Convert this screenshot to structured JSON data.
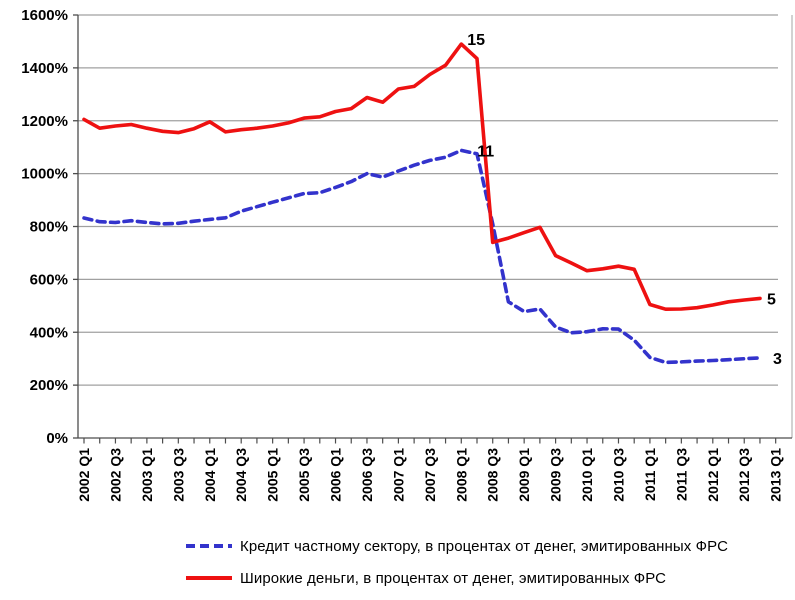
{
  "chart_data": {
    "type": "line",
    "title": "",
    "xlabel": "",
    "ylabel": "",
    "ylim": [
      0,
      1600
    ],
    "ytick_step": 200,
    "y_tick_labels": [
      "0%",
      "200%",
      "400%",
      "600%",
      "800%",
      "1000%",
      "1200%",
      "1400%",
      "1600%"
    ],
    "x_tick_labels": [
      "2002 Q1",
      "2002 Q3",
      "2003 Q1",
      "2003 Q3",
      "2004 Q1",
      "2004 Q3",
      "2005 Q1",
      "2005 Q3",
      "2006 Q1",
      "2006 Q3",
      "2007 Q1",
      "2007 Q3",
      "2008 Q1",
      "2008 Q3",
      "2009 Q1",
      "2009 Q3",
      "2010 Q1",
      "2010 Q3",
      "2011 Q1",
      "2011 Q3",
      "2012 Q1",
      "2012 Q3",
      "2013 Q1"
    ],
    "categories": [
      "2002 Q1",
      "2002 Q2",
      "2002 Q3",
      "2002 Q4",
      "2003 Q1",
      "2003 Q2",
      "2003 Q3",
      "2003 Q4",
      "2004 Q1",
      "2004 Q2",
      "2004 Q3",
      "2004 Q4",
      "2005 Q1",
      "2005 Q2",
      "2005 Q3",
      "2005 Q4",
      "2006 Q1",
      "2006 Q2",
      "2006 Q3",
      "2006 Q4",
      "2007 Q1",
      "2007 Q2",
      "2007 Q3",
      "2007 Q4",
      "2008 Q1",
      "2008 Q2",
      "2008 Q3",
      "2008 Q4",
      "2009 Q1",
      "2009 Q2",
      "2009 Q3",
      "2009 Q4",
      "2010 Q1",
      "2010 Q2",
      "2010 Q3",
      "2010 Q4",
      "2011 Q1",
      "2011 Q2",
      "2011 Q3",
      "2011 Q4",
      "2012 Q1",
      "2012 Q2",
      "2012 Q3",
      "2012 Q4"
    ],
    "grid": "horizontal",
    "legend_position": "bottom",
    "axis_color": "#4d4d4d",
    "gridline_color": "#a0a0a0",
    "series": [
      {
        "name": "Кредит частному сектору, в процентах от денег, эмитированных ФРС",
        "color": "#3333cc",
        "style": "dashed",
        "peak_annotation": "11",
        "end_annotation": "3",
        "values": [
          832,
          818,
          815,
          822,
          815,
          810,
          812,
          820,
          827,
          833,
          858,
          875,
          892,
          908,
          925,
          928,
          948,
          970,
          1000,
          987,
          1010,
          1032,
          1050,
          1062,
          1088,
          1075,
          810,
          515,
          478,
          488,
          420,
          398,
          402,
          413,
          412,
          370,
          305,
          286,
          288,
          291,
          293,
          296,
          300,
          303
        ]
      },
      {
        "name": "Широкие деньги, в процентах от денег, эмитированных ФРС",
        "color": "#ee1111",
        "style": "solid",
        "peak_annotation": "15",
        "end_annotation": "5",
        "values": [
          1205,
          1172,
          1180,
          1186,
          1172,
          1160,
          1155,
          1170,
          1196,
          1158,
          1166,
          1172,
          1180,
          1192,
          1210,
          1215,
          1235,
          1246,
          1288,
          1270,
          1320,
          1330,
          1375,
          1410,
          1490,
          1435,
          740,
          756,
          777,
          797,
          690,
          662,
          633,
          640,
          650,
          638,
          505,
          487,
          488,
          493,
          503,
          515,
          522,
          528
        ]
      }
    ]
  }
}
